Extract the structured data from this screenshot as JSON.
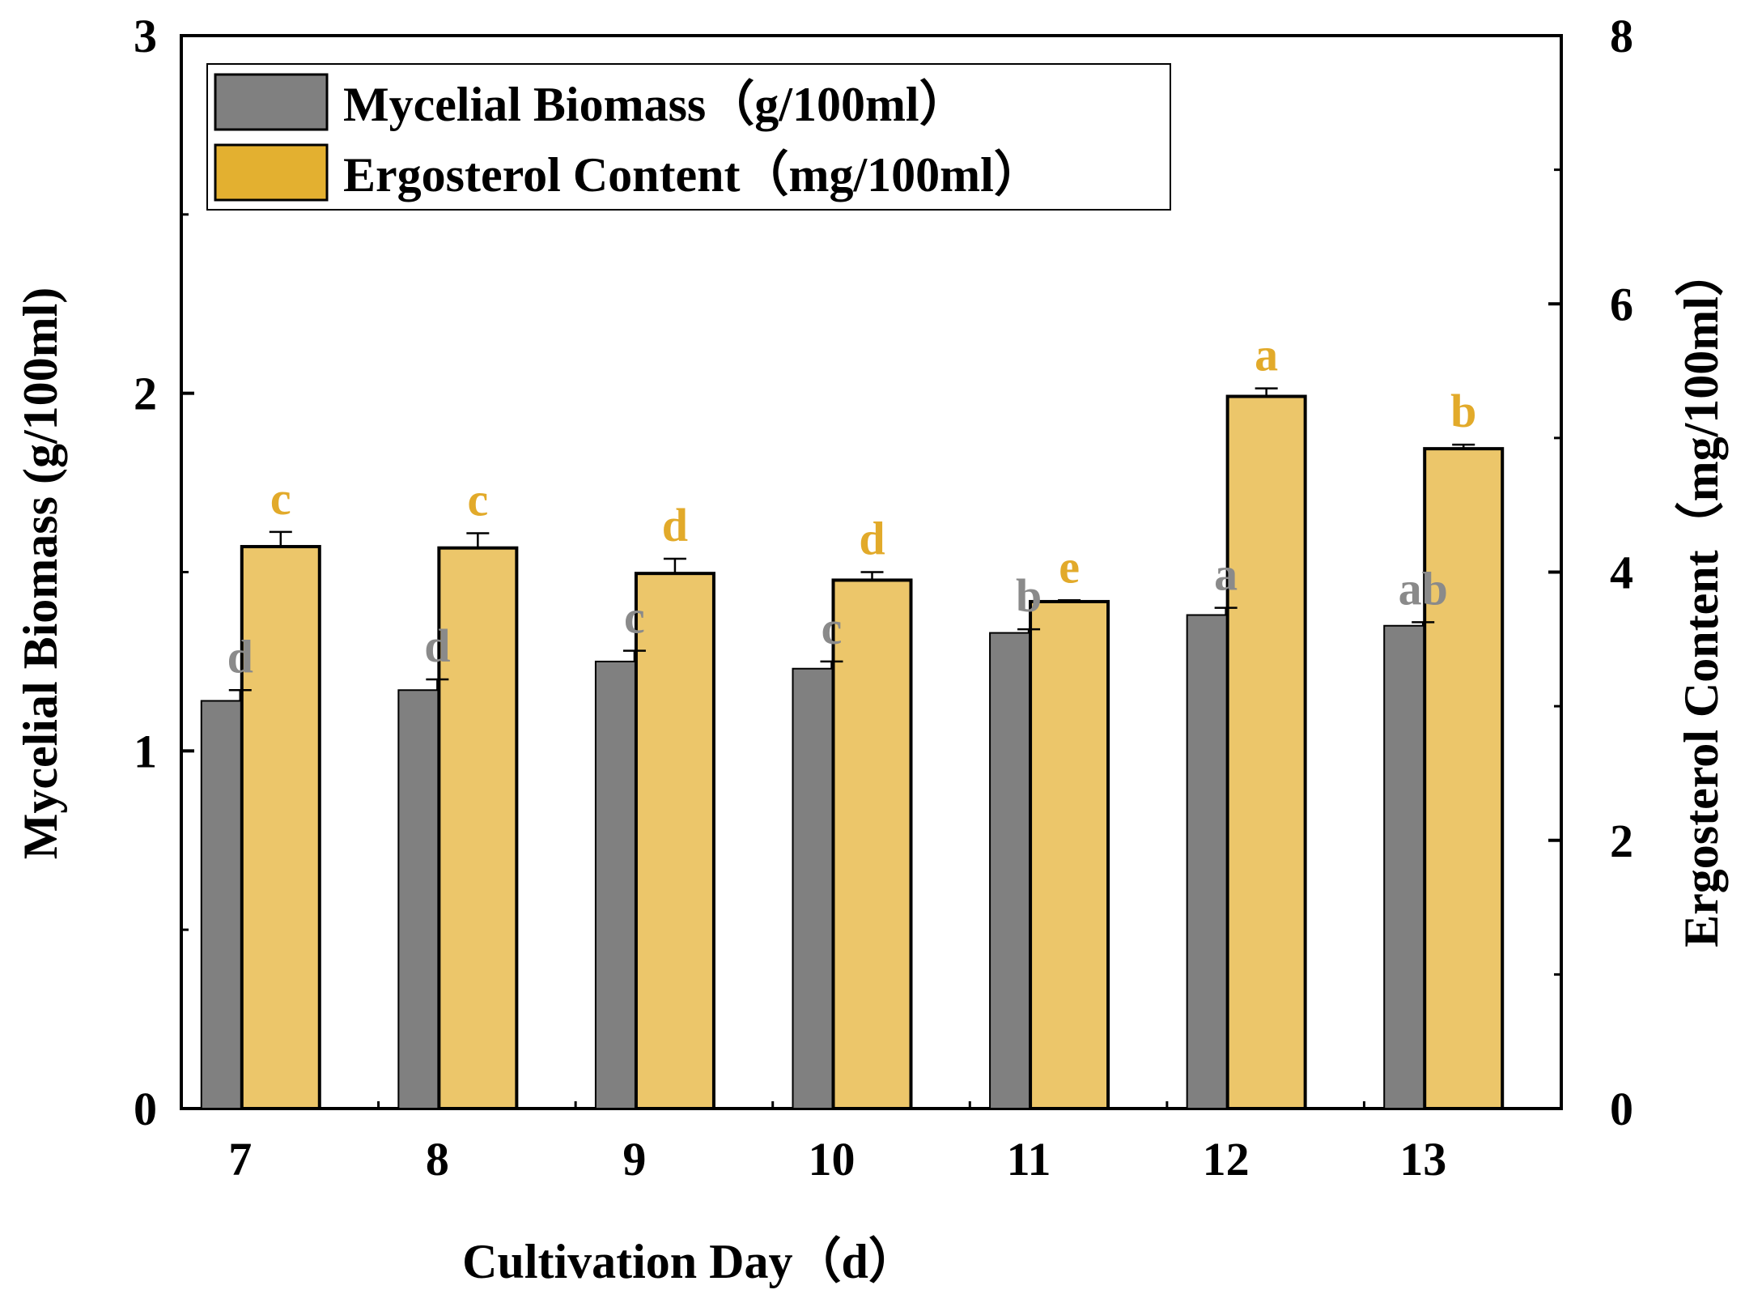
{
  "chart_data": {
    "type": "bar",
    "title": "",
    "xlabel": "Cultivation Day（d）",
    "ylabel_left": "Mycelial Biomass (g/100ml)",
    "ylabel_right": "Ergosterol Content（mg/100ml）",
    "categories": [
      "7",
      "8",
      "9",
      "10",
      "11",
      "12",
      "13"
    ],
    "ylim_left": [
      0,
      3
    ],
    "ylim_right": [
      0,
      8
    ],
    "yticks_left": [
      "0",
      "1",
      "2",
      "3"
    ],
    "yticks_right": [
      "0",
      "2",
      "4",
      "6",
      "8"
    ],
    "grid": false,
    "legend_position": "top-left",
    "series": [
      {
        "name": "Mycelial Biomass（g/100ml）",
        "axis": "left",
        "color": "#808080",
        "values": [
          1.14,
          1.17,
          1.25,
          1.23,
          1.33,
          1.38,
          1.35
        ],
        "errors": [
          0.03,
          0.03,
          0.03,
          0.02,
          0.01,
          0.02,
          0.01
        ],
        "significance": [
          "d",
          "d",
          "c",
          "c",
          "b",
          "a",
          "ab"
        ],
        "label_color": "#8a8a8a"
      },
      {
        "name": "Ergosterol Content（mg/100ml）",
        "axis": "right",
        "color": "#ecc66a",
        "legend_color": "#e3b030",
        "values": [
          4.19,
          4.18,
          3.99,
          3.94,
          3.78,
          5.31,
          4.92
        ],
        "errors": [
          0.11,
          0.11,
          0.11,
          0.06,
          0.01,
          0.06,
          0.03
        ],
        "significance": [
          "c",
          "c",
          "d",
          "d",
          "e",
          "a",
          "b"
        ],
        "label_color": "#e2aa2a"
      }
    ]
  }
}
